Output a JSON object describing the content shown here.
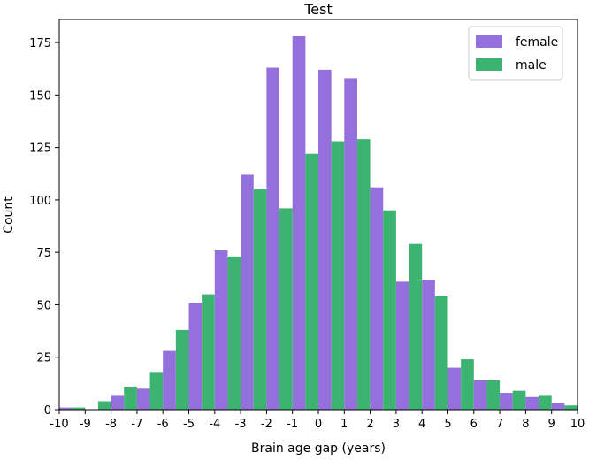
{
  "chart_data": {
    "type": "bar",
    "title": "Test",
    "xlabel": "Brain age gap (years)",
    "ylabel": "Count",
    "xlim": [
      -10,
      10
    ],
    "ylim": [
      0,
      186
    ],
    "x_ticks": [
      "-10",
      "-9",
      "-8",
      "-7",
      "-6",
      "-5",
      "-4",
      "-3",
      "-2",
      "-1",
      "0",
      "1",
      "2",
      "3",
      "4",
      "5",
      "6",
      "7",
      "8",
      "9",
      "10"
    ],
    "y_ticks": [
      "0",
      "25",
      "50",
      "75",
      "100",
      "125",
      "150",
      "175"
    ],
    "bin_edges": [
      -10,
      -9,
      -8,
      -7,
      -6,
      -5,
      -4,
      -3,
      -2,
      -1,
      0,
      1,
      2,
      3,
      4,
      5,
      6,
      7,
      8,
      9,
      10
    ],
    "grid": false,
    "legend_position": "top-right",
    "series": [
      {
        "name": "female",
        "color": "#9370DB",
        "values": [
          1,
          0,
          7,
          10,
          28,
          51,
          76,
          112,
          163,
          178,
          162,
          158,
          106,
          61,
          62,
          20,
          14,
          8,
          6,
          3
        ]
      },
      {
        "name": "male",
        "color": "#3CB371",
        "values": [
          1,
          4,
          11,
          18,
          38,
          55,
          73,
          105,
          96,
          122,
          128,
          129,
          95,
          79,
          54,
          24,
          14,
          9,
          7,
          2
        ]
      }
    ]
  }
}
